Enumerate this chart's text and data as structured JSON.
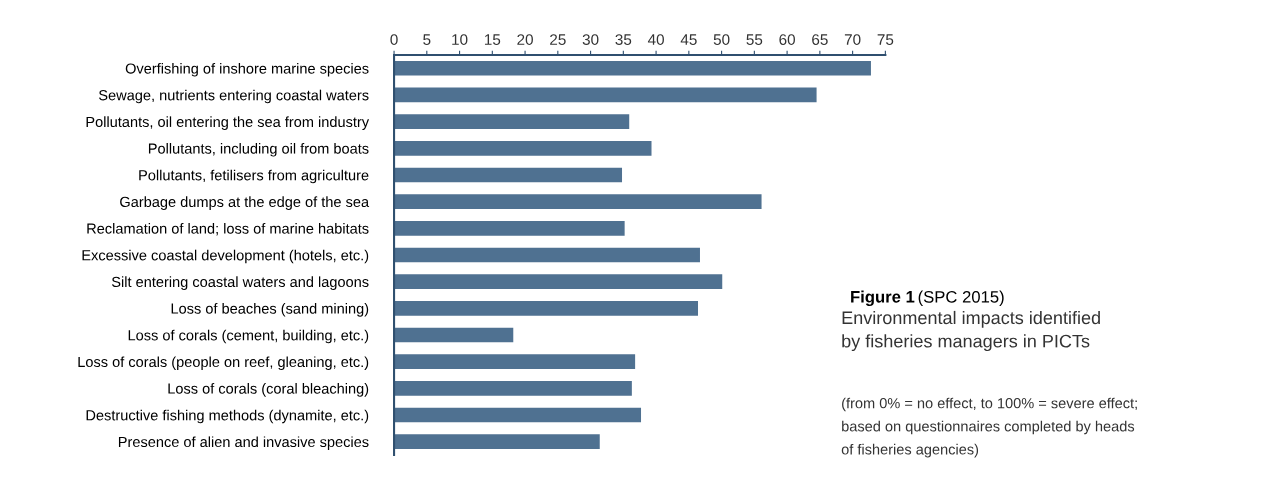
{
  "chart_data": {
    "type": "bar",
    "orientation": "horizontal",
    "title": "Environmental impacts identified\nby fisheries managers in PICTs",
    "annotations": [
      "Figure 1",
      "(SPC 2015)",
      "(from 0% = no effect, to 100% = severe effect;\nbased on questionnaires completed by heads\nof fisheries agencies)"
    ],
    "categories": [
      "Overfishing of inshore marine species",
      "Sewage, nutrients entering coastal waters",
      "Pollutants, oil entering the sea from industry",
      "Pollutants, including oil from boats",
      "Pollutants, fetilisers from agriculture",
      "Garbage dumps at the edge of the sea",
      "Reclamation of land; loss of marine habitats",
      "Excessive coastal development (hotels, etc.)",
      "Silt entering coastal waters and lagoons",
      "Loss of beaches (sand mining)",
      "Loss of corals (cement, building, etc.)",
      "Loss of corals (people on reef, gleaning, etc.)",
      "Loss of corals (coral bleaching)",
      "Destructive fishing methods (dynamite, etc.)",
      "Presence of alien and invasive species"
    ],
    "values": [
      72.8,
      64.5,
      35.9,
      39.3,
      34.8,
      56.1,
      35.2,
      46.7,
      50.1,
      46.4,
      18.2,
      36.8,
      36.3,
      37.7,
      31.4
    ],
    "color": "#4f7191",
    "xlim": [
      0,
      75
    ],
    "xticks": [
      0,
      5,
      10,
      15,
      20,
      25,
      30,
      35,
      40,
      45,
      50,
      55,
      60,
      65,
      70,
      75
    ],
    "grid": false,
    "legend": false
  }
}
